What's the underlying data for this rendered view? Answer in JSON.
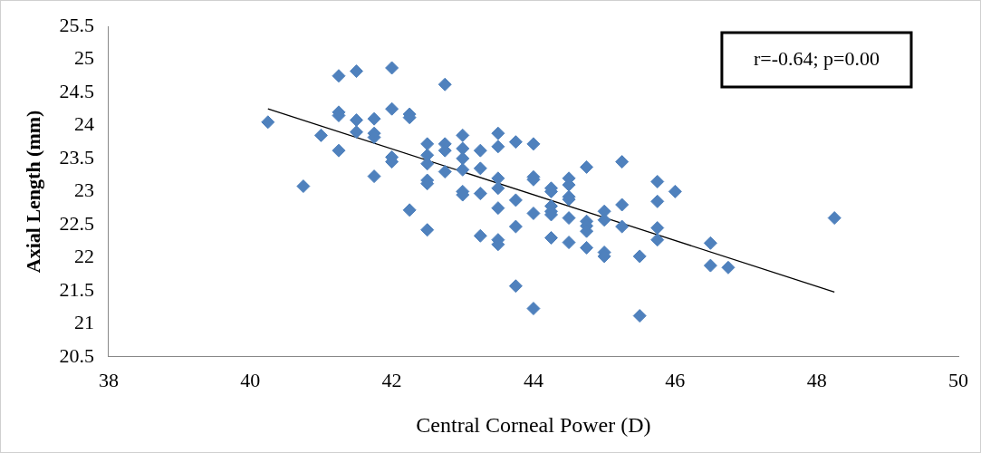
{
  "chart_data": {
    "type": "scatter",
    "xlabel": "Central Corneal Power (D)",
    "ylabel": "Axial Length (mm)",
    "xlim": [
      38,
      50
    ],
    "xticks": [
      38,
      40,
      42,
      44,
      46,
      48,
      50
    ],
    "ylim": [
      20.5,
      25.5
    ],
    "yticks": [
      20.5,
      21,
      21.5,
      22,
      22.5,
      23,
      23.5,
      24,
      24.5,
      25,
      25.5
    ],
    "grid": false,
    "legend": false,
    "marker": "diamond",
    "annotations": [
      "r=-0.64; p=0.00"
    ],
    "series": [
      {
        "type": "scatter",
        "color": "#4f81bd",
        "x": [
          40.25,
          40.75,
          41.0,
          41.25,
          41.25,
          41.25,
          41.25,
          41.5,
          41.5,
          41.5,
          41.75,
          41.75,
          41.75,
          41.75,
          42.0,
          42.0,
          42.0,
          42.0,
          42.25,
          42.25,
          42.25,
          42.5,
          42.5,
          42.5,
          42.5,
          42.5,
          42.5,
          42.75,
          42.75,
          42.75,
          42.75,
          43.0,
          43.0,
          43.0,
          43.0,
          43.0,
          43.0,
          43.25,
          43.25,
          43.25,
          43.25,
          43.5,
          43.5,
          43.5,
          43.5,
          43.5,
          43.5,
          43.5,
          43.75,
          43.75,
          43.75,
          43.75,
          44.0,
          44.0,
          44.0,
          44.0,
          44.0,
          44.25,
          44.25,
          44.25,
          44.25,
          44.25,
          44.25,
          44.5,
          44.5,
          44.5,
          44.5,
          44.5,
          44.5,
          44.75,
          44.75,
          44.75,
          44.75,
          44.75,
          45.0,
          45.0,
          45.0,
          45.0,
          45.25,
          45.25,
          45.25,
          45.5,
          45.5,
          45.75,
          45.75,
          45.75,
          45.75,
          46.0,
          46.5,
          46.5,
          46.75,
          48.25
        ],
        "values": [
          24.05,
          23.08,
          23.85,
          24.75,
          24.2,
          24.15,
          23.62,
          24.82,
          24.08,
          23.9,
          24.1,
          23.88,
          23.82,
          23.23,
          24.87,
          24.25,
          23.52,
          23.45,
          24.17,
          24.12,
          22.72,
          23.72,
          23.55,
          23.42,
          23.17,
          23.12,
          22.42,
          24.62,
          23.72,
          23.62,
          23.3,
          23.85,
          23.65,
          23.5,
          23.33,
          23.0,
          22.95,
          23.62,
          23.35,
          22.97,
          22.33,
          23.88,
          23.68,
          23.2,
          23.05,
          22.75,
          22.27,
          22.2,
          23.75,
          22.87,
          22.47,
          21.57,
          23.72,
          23.22,
          23.18,
          22.67,
          21.23,
          23.05,
          23.0,
          22.78,
          22.7,
          22.65,
          22.3,
          23.2,
          23.1,
          22.92,
          22.88,
          22.6,
          22.23,
          23.37,
          22.55,
          22.48,
          22.4,
          22.15,
          22.7,
          22.57,
          22.08,
          22.02,
          23.45,
          22.8,
          22.47,
          22.02,
          21.12,
          23.15,
          22.85,
          22.45,
          22.27,
          23.0,
          22.22,
          21.88,
          21.85,
          22.6
        ]
      },
      {
        "type": "line",
        "marker": "none",
        "color": "#000000",
        "x": [
          40.25,
          48.25
        ],
        "values": [
          24.25,
          21.48
        ]
      }
    ]
  }
}
